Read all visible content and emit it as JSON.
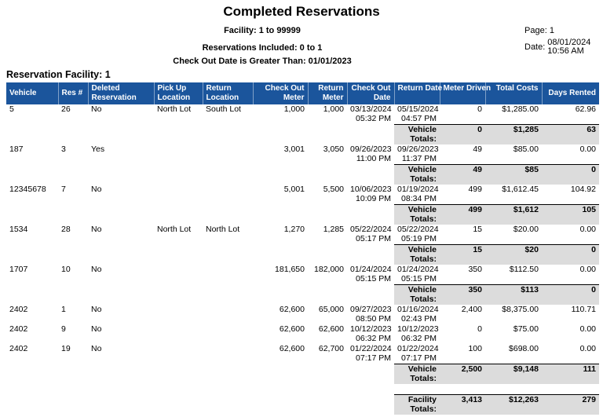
{
  "report": {
    "title": "Completed Reservations",
    "facility_range": "Facility: 1 to 99999",
    "reservations_included": "Reservations Included: 0 to 1",
    "filter_line": "Check Out Date is Greater Than: 01/01/2023",
    "page_label": "Page:",
    "page_value": "1",
    "date_label": "Date:",
    "date_value": "08/01/2024",
    "time_value": "10:56 AM"
  },
  "section": {
    "title": "Reservation Facility: 1"
  },
  "colors": {
    "header_bg": "#1B559C",
    "totals_bg": "#DCDCDC"
  },
  "table": {
    "columns": [
      "Vehicle",
      "Res #",
      "Deleted Reservation",
      "Pick Up Location",
      "Return Location",
      "Check Out Meter",
      "Return Meter",
      "Check Out Date",
      "Return Date",
      "Meter Driven",
      "Total Costs",
      "Days Rented"
    ],
    "vehicle_totals_label": "Vehicle Totals:",
    "facility_totals_label": "Facility Totals:",
    "groups": [
      {
        "rows": [
          {
            "vehicle": "5",
            "res": "26",
            "deleted": "No",
            "pickup": "North Lot",
            "return_location": "South Lot",
            "check_out_meter": "1,000",
            "return_meter": "1,000",
            "check_out_date": "03/13/2024",
            "check_out_time": "05:32 PM",
            "return_date": "05/15/2024",
            "return_time": "04:57 PM",
            "meter_driven": "0",
            "total_costs": "$1,285.00",
            "days_rented": "62.96"
          }
        ],
        "totals": {
          "meter_driven": "0",
          "total_costs": "$1,285",
          "days_rented": "63"
        }
      },
      {
        "rows": [
          {
            "vehicle": "187",
            "res": "3",
            "deleted": "Yes",
            "pickup": "",
            "return_location": "",
            "check_out_meter": "3,001",
            "return_meter": "3,050",
            "check_out_date": "09/26/2023",
            "check_out_time": "11:00 PM",
            "return_date": "09/26/2023",
            "return_time": "11:37 PM",
            "meter_driven": "49",
            "total_costs": "$85.00",
            "days_rented": "0.00"
          }
        ],
        "totals": {
          "meter_driven": "49",
          "total_costs": "$85",
          "days_rented": "0"
        }
      },
      {
        "rows": [
          {
            "vehicle": "12345678",
            "res": "7",
            "deleted": "No",
            "pickup": "",
            "return_location": "",
            "check_out_meter": "5,001",
            "return_meter": "5,500",
            "check_out_date": "10/06/2023",
            "check_out_time": "10:09 PM",
            "return_date": "01/19/2024",
            "return_time": "08:34 PM",
            "meter_driven": "499",
            "total_costs": "$1,612.45",
            "days_rented": "104.92"
          }
        ],
        "totals": {
          "meter_driven": "499",
          "total_costs": "$1,612",
          "days_rented": "105"
        }
      },
      {
        "rows": [
          {
            "vehicle": "1534",
            "res": "28",
            "deleted": "No",
            "pickup": "North Lot",
            "return_location": "North Lot",
            "check_out_meter": "1,270",
            "return_meter": "1,285",
            "check_out_date": "05/22/2024",
            "check_out_time": "05:17 PM",
            "return_date": "05/22/2024",
            "return_time": "05:19 PM",
            "meter_driven": "15",
            "total_costs": "$20.00",
            "days_rented": "0.00"
          }
        ],
        "totals": {
          "meter_driven": "15",
          "total_costs": "$20",
          "days_rented": "0"
        }
      },
      {
        "rows": [
          {
            "vehicle": "1707",
            "res": "10",
            "deleted": "No",
            "pickup": "",
            "return_location": "",
            "check_out_meter": "181,650",
            "return_meter": "182,000",
            "check_out_date": "01/24/2024",
            "check_out_time": "05:15 PM",
            "return_date": "01/24/2024",
            "return_time": "05:15 PM",
            "meter_driven": "350",
            "total_costs": "$112.50",
            "days_rented": "0.00"
          }
        ],
        "totals": {
          "meter_driven": "350",
          "total_costs": "$113",
          "days_rented": "0"
        }
      },
      {
        "rows": [
          {
            "vehicle": "2402",
            "res": "1",
            "deleted": "No",
            "pickup": "",
            "return_location": "",
            "check_out_meter": "62,600",
            "return_meter": "65,000",
            "check_out_date": "09/27/2023",
            "check_out_time": "08:50 PM",
            "return_date": "01/16/2024",
            "return_time": "02:43 PM",
            "meter_driven": "2,400",
            "total_costs": "$8,375.00",
            "days_rented": "110.71"
          },
          {
            "vehicle": "2402",
            "res": "9",
            "deleted": "No",
            "pickup": "",
            "return_location": "",
            "check_out_meter": "62,600",
            "return_meter": "62,600",
            "check_out_date": "10/12/2023",
            "check_out_time": "06:32 PM",
            "return_date": "10/12/2023",
            "return_time": "06:32 PM",
            "meter_driven": "0",
            "total_costs": "$75.00",
            "days_rented": "0.00"
          },
          {
            "vehicle": "2402",
            "res": "19",
            "deleted": "No",
            "pickup": "",
            "return_location": "",
            "check_out_meter": "62,600",
            "return_meter": "62,700",
            "check_out_date": "01/22/2024",
            "check_out_time": "07:17 PM",
            "return_date": "01/22/2024",
            "return_time": "07:17 PM",
            "meter_driven": "100",
            "total_costs": "$698.00",
            "days_rented": "0.00"
          }
        ],
        "totals": {
          "meter_driven": "2,500",
          "total_costs": "$9,148",
          "days_rented": "111"
        }
      }
    ],
    "facility_totals": {
      "meter_driven": "3,413",
      "total_costs": "$12,263",
      "days_rented": "279"
    }
  }
}
